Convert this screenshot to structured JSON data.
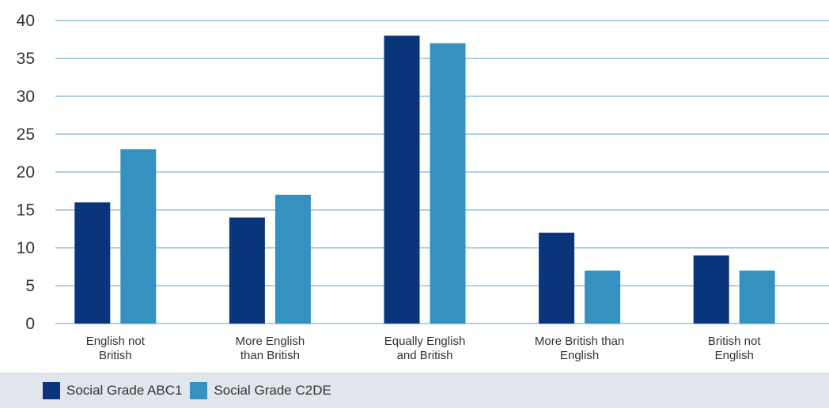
{
  "chart_data": {
    "type": "bar",
    "categories": [
      [
        "English not",
        "British"
      ],
      [
        "More English",
        "than British"
      ],
      [
        "Equally English",
        "and British"
      ],
      [
        "More British than",
        "English"
      ],
      [
        "British not",
        "English"
      ]
    ],
    "series": [
      {
        "name": "Social Grade ABC1",
        "color": "#0b357a",
        "values": [
          16,
          14,
          38,
          12,
          9
        ]
      },
      {
        "name": "Social Grade C2DE",
        "color": "#3591c0",
        "values": [
          23,
          17,
          37,
          7,
          7
        ]
      }
    ],
    "yticks": [
      0,
      5,
      10,
      15,
      20,
      25,
      30,
      35,
      40
    ],
    "ylim": [
      0,
      40
    ],
    "grid": true,
    "grid_color": "#7fb7d2",
    "title": "",
    "xlabel": "",
    "ylabel": "",
    "legend_position": "bottom-left"
  }
}
